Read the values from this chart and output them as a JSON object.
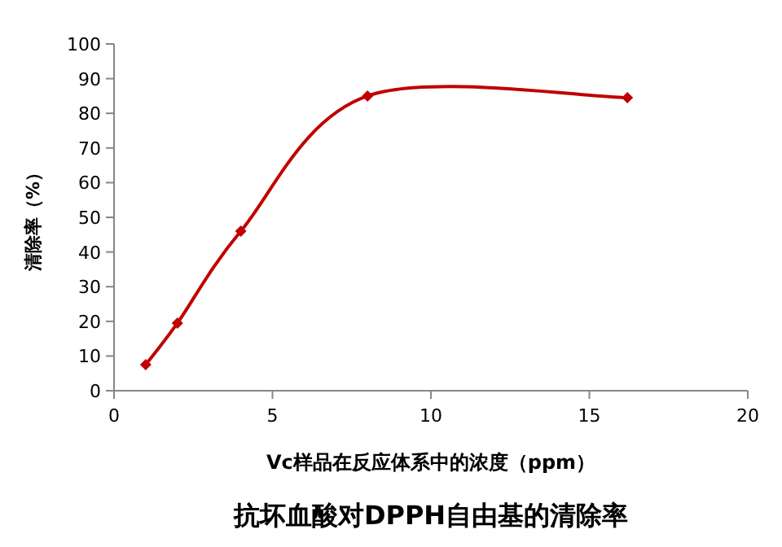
{
  "chart_data": {
    "type": "line",
    "title": "抗坏血酸对DPPH自由基的清除率",
    "xlabel": "Vc样品在反应体系中的浓度（ppm）",
    "ylabel": "清除率（%）",
    "x": [
      1,
      2,
      4,
      8,
      16.2
    ],
    "series": [
      {
        "color": "#c00000",
        "values": [
          7.5,
          19.5,
          46,
          85,
          84.5
        ]
      }
    ],
    "xlim": [
      0,
      20
    ],
    "xticks": [
      0,
      5,
      10,
      15,
      20
    ],
    "ylim": [
      0,
      100
    ],
    "yticks": [
      0,
      10,
      20,
      30,
      40,
      50,
      60,
      70,
      80,
      90,
      100
    ],
    "marker": "diamond",
    "line_style": "solid"
  }
}
